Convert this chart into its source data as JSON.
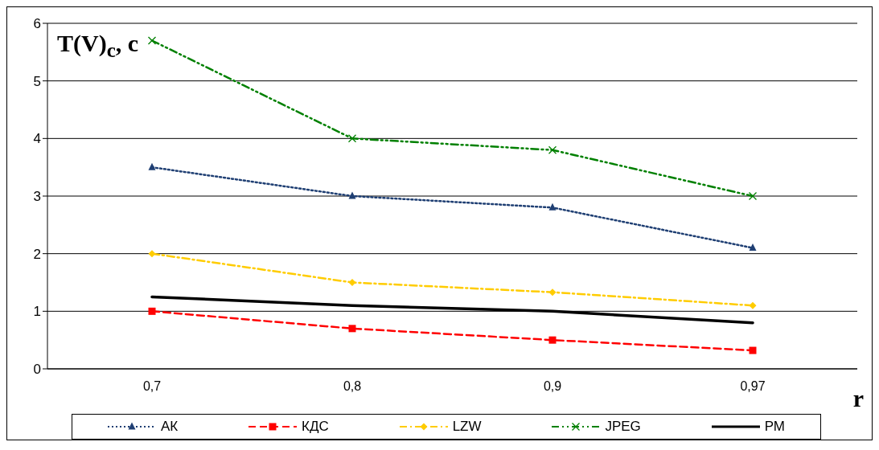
{
  "chart_data": {
    "type": "line",
    "ylabel": "T(V)$_{c}$, c",
    "xlabel": "r",
    "categories": [
      "0,7",
      "0,8",
      "0,9",
      "0,97"
    ],
    "series": [
      {
        "name": "АК",
        "color": "#1f3f73",
        "values": [
          3.5,
          3.0,
          2.8,
          2.1
        ],
        "marker": "triangle",
        "line_style": "dotted"
      },
      {
        "name": "КДС",
        "color": "#ff0000",
        "values": [
          1.0,
          0.7,
          0.5,
          0.32
        ],
        "marker": "square",
        "line_style": "dashed"
      },
      {
        "name": "LZW",
        "color": "#ffcc00",
        "values": [
          2.0,
          1.5,
          1.33,
          1.1
        ],
        "marker": "diamond",
        "line_style": "dashdot"
      },
      {
        "name": "JPEG",
        "color": "#008000",
        "values": [
          5.7,
          4.0,
          3.8,
          3.0
        ],
        "marker": "cross",
        "line_style": "dashdotdot"
      },
      {
        "name": "РМ",
        "color": "#000000",
        "values": [
          1.25,
          1.1,
          1.0,
          0.8
        ],
        "marker": "none",
        "line_style": "solid"
      }
    ],
    "ylim": [
      0,
      6
    ],
    "yticks": [
      0,
      1,
      2,
      3,
      4,
      5,
      6
    ],
    "grid": "y",
    "legend": "bottom"
  }
}
